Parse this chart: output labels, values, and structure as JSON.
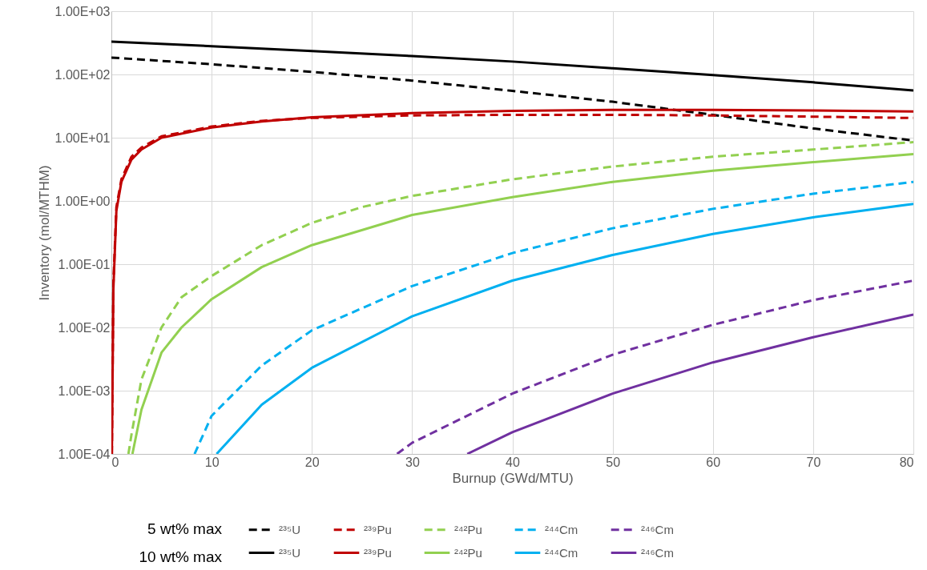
{
  "chart_data": {
    "type": "line",
    "xlabel": "Burnup (GWd/MTU)",
    "ylabel": "Inventory (mol/MTHM)",
    "log": "y",
    "grid": true,
    "legend": "bottom",
    "xlim": [
      0,
      80
    ],
    "xticks": [
      0,
      10,
      20,
      30,
      40,
      50,
      60,
      70,
      80
    ],
    "ylim": [
      0.0001,
      1000
    ],
    "yticks": [
      {
        "value": 0.0001,
        "label": "1.00E-04"
      },
      {
        "value": 0.001,
        "label": "1.00E-03"
      },
      {
        "value": 0.01,
        "label": "1.00E-02"
      },
      {
        "value": 0.1,
        "label": "1.00E-01"
      },
      {
        "value": 1,
        "label": "1.00E+00"
      },
      {
        "value": 10,
        "label": "1.00E+01"
      },
      {
        "value": 100,
        "label": "1.00E+02"
      },
      {
        "value": 1000,
        "label": "1.00E+03"
      }
    ],
    "annotations": [
      "5 wt% max",
      "10 wt% max"
    ],
    "series": [
      {
        "name": "²³⁵U",
        "color": "#000000",
        "line_style": "dashed",
        "x": [
          0,
          10,
          20,
          30,
          40,
          50,
          60,
          70,
          80
        ],
        "values": [
          185,
          145,
          110,
          80,
          55,
          37,
          23,
          14,
          9
        ]
      },
      {
        "name": "²³⁹Pu",
        "color": "#c00000",
        "line_style": "dashed",
        "x": [
          0.05,
          0.2,
          0.5,
          1,
          2,
          3,
          5,
          10,
          15,
          20,
          30,
          40,
          50,
          60,
          70,
          80
        ],
        "values": [
          0.0001,
          0.05,
          0.8,
          2.2,
          5,
          7,
          10.5,
          15,
          18.5,
          20.5,
          22.5,
          23,
          23,
          22.5,
          21.5,
          20.5
        ]
      },
      {
        "name": "²⁴²Pu",
        "color": "#92d050",
        "line_style": "dashed",
        "x": [
          1.7,
          2,
          3,
          5,
          7,
          10,
          15,
          20,
          25,
          30,
          40,
          50,
          60,
          70,
          80
        ],
        "values": [
          0.0001,
          0.0002,
          0.0015,
          0.01,
          0.03,
          0.065,
          0.2,
          0.45,
          0.8,
          1.2,
          2.2,
          3.5,
          5,
          6.5,
          8.5
        ]
      },
      {
        "name": "²⁴⁴Cm",
        "color": "#00b0f0",
        "line_style": "dashed",
        "x": [
          8.3,
          10,
          15,
          20,
          30,
          40,
          50,
          60,
          70,
          80
        ],
        "values": [
          0.0001,
          0.0004,
          0.0025,
          0.009,
          0.045,
          0.15,
          0.37,
          0.75,
          1.3,
          2
        ]
      },
      {
        "name": "²⁴⁶Cm",
        "color": "#7030a0",
        "line_style": "dashed",
        "x": [
          28.5,
          30,
          40,
          50,
          60,
          70,
          80
        ],
        "values": [
          0.0001,
          0.00015,
          0.0009,
          0.0037,
          0.011,
          0.027,
          0.055
        ]
      },
      {
        "name": "²³⁵U",
        "color": "#000000",
        "line_style": "solid",
        "x": [
          0,
          10,
          20,
          30,
          40,
          50,
          60,
          70,
          80
        ],
        "values": [
          330,
          280,
          235,
          195,
          160,
          125,
          98,
          75,
          56
        ]
      },
      {
        "name": "²³⁹Pu",
        "color": "#c00000",
        "line_style": "solid",
        "x": [
          0.05,
          0.2,
          0.5,
          1,
          2,
          3,
          5,
          10,
          15,
          20,
          30,
          40,
          50,
          60,
          70,
          80
        ],
        "values": [
          0.0001,
          0.04,
          0.7,
          2,
          4.5,
          6.5,
          10,
          14.5,
          18,
          21,
          24.5,
          26.5,
          27.5,
          27.5,
          27,
          26
        ]
      },
      {
        "name": "²⁴²Pu",
        "color": "#92d050",
        "line_style": "solid",
        "x": [
          2.1,
          3,
          5,
          7,
          10,
          15,
          20,
          30,
          40,
          50,
          60,
          70,
          80
        ],
        "values": [
          0.0001,
          0.0005,
          0.004,
          0.01,
          0.028,
          0.09,
          0.2,
          0.6,
          1.15,
          2,
          3,
          4.1,
          5.5
        ]
      },
      {
        "name": "²⁴⁴Cm",
        "color": "#00b0f0",
        "line_style": "solid",
        "x": [
          10.5,
          15,
          20,
          30,
          40,
          50,
          60,
          70,
          80
        ],
        "values": [
          0.0001,
          0.0006,
          0.0023,
          0.015,
          0.055,
          0.14,
          0.3,
          0.55,
          0.9
        ]
      },
      {
        "name": "²⁴⁶Cm",
        "color": "#7030a0",
        "line_style": "solid",
        "x": [
          35.5,
          40,
          50,
          60,
          70,
          80
        ],
        "values": [
          0.0001,
          0.00022,
          0.0009,
          0.0028,
          0.007,
          0.016
        ]
      }
    ]
  }
}
